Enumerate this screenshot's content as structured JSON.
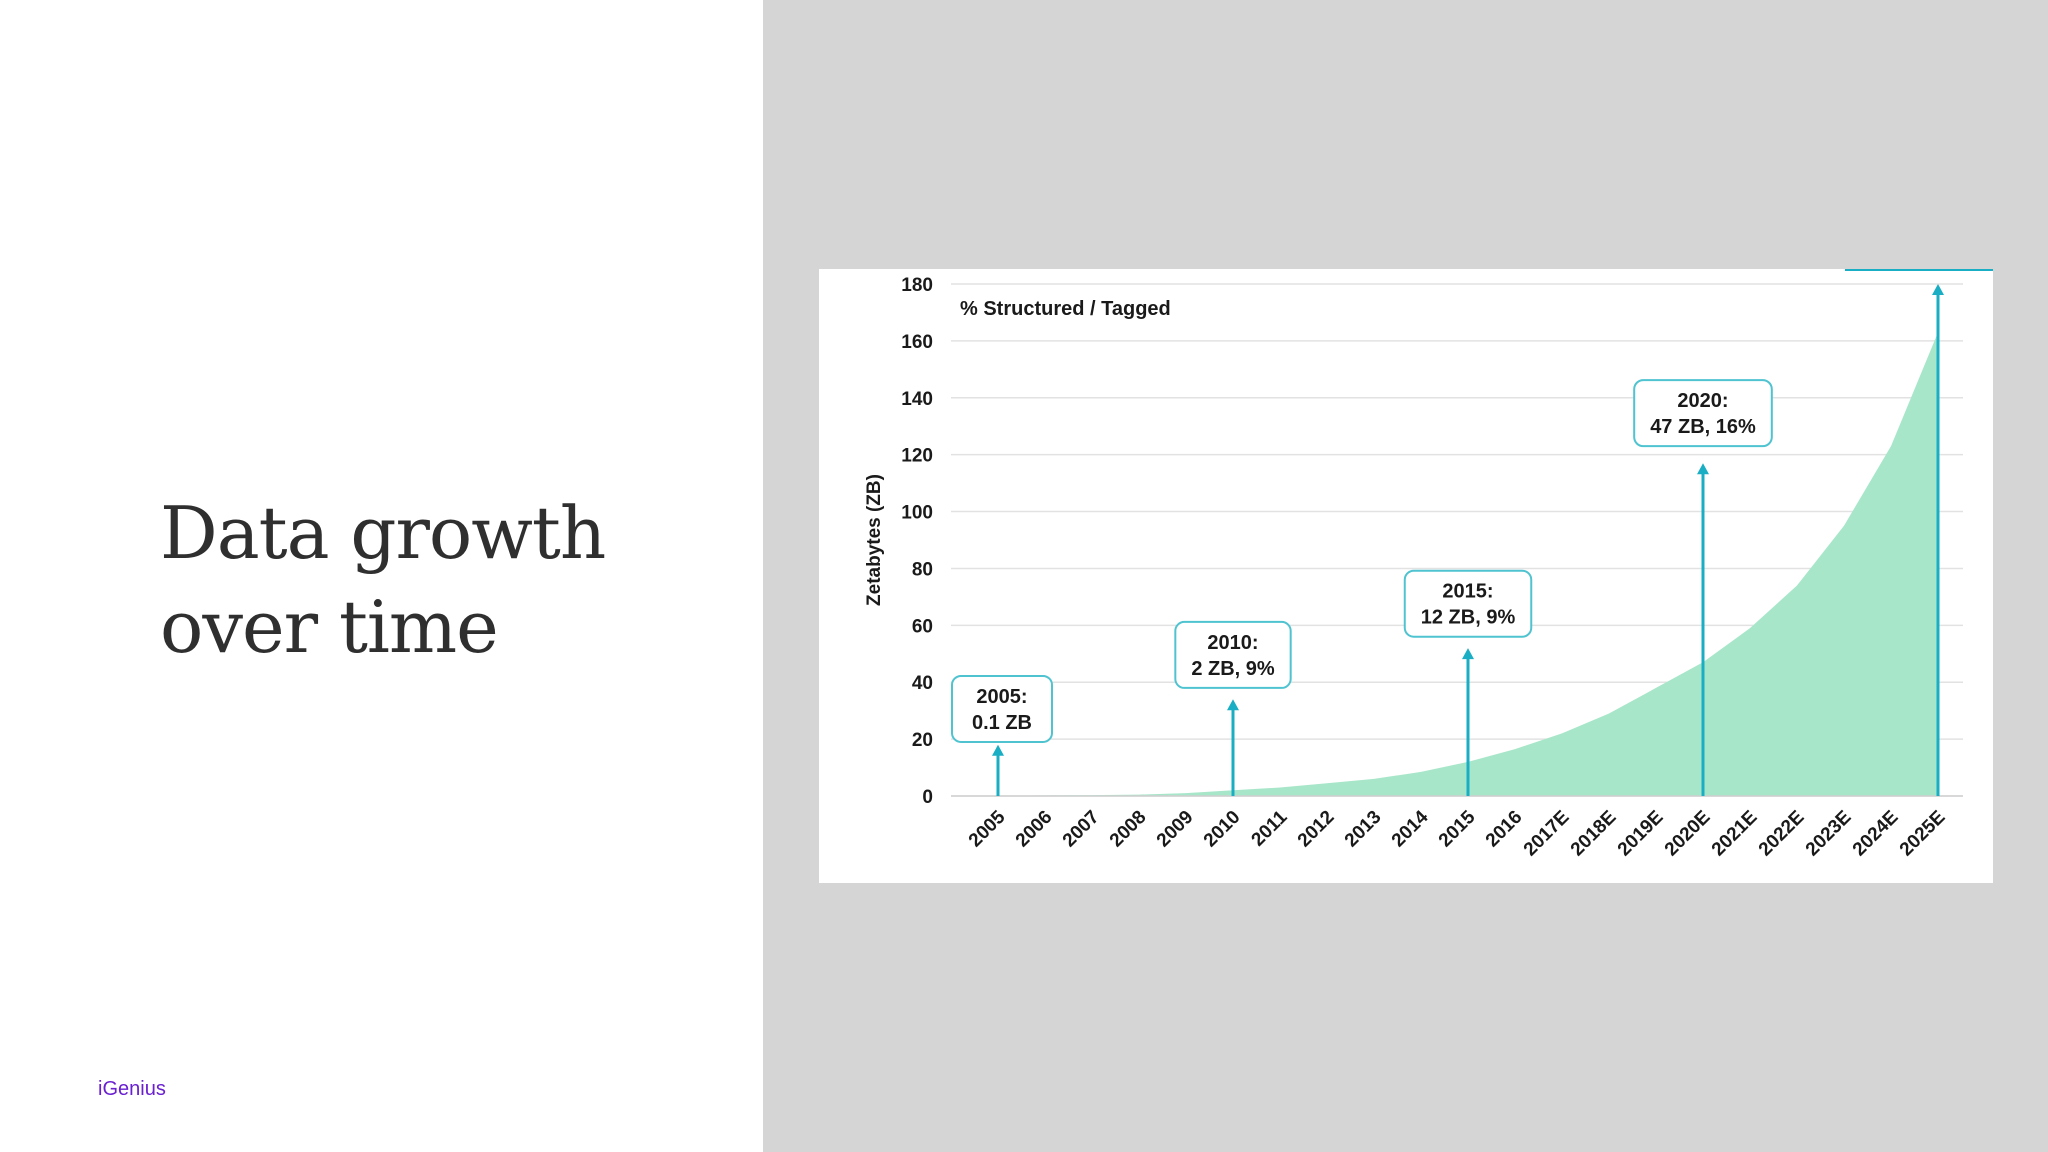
{
  "slide": {
    "title_line1": "Data growth",
    "title_line2": "over time",
    "brand": "iGenius"
  },
  "colors": {
    "area": "#a7e6c9",
    "arrow": "#1aaec4",
    "grid": "#e2e2e2",
    "callout_border": "#4fc3d0"
  },
  "chart_data": {
    "type": "area",
    "ylabel": "Zetabytes (ZB)",
    "xlabel": "",
    "ylim": [
      0,
      180
    ],
    "yticks": [
      0,
      20,
      40,
      60,
      80,
      100,
      120,
      140,
      160,
      180
    ],
    "legend": "% Structured / Tagged",
    "categories": [
      "2005",
      "2006",
      "2007",
      "2008",
      "2009",
      "2010",
      "2011",
      "2012",
      "2013",
      "2014",
      "2015",
      "2016",
      "2017E",
      "2018E",
      "2019E",
      "2020E",
      "2021E",
      "2022E",
      "2023E",
      "2024E",
      "2025E"
    ],
    "values": [
      0.1,
      0.2,
      0.3,
      0.5,
      1,
      2,
      3,
      4.5,
      6,
      8.5,
      12,
      16.5,
      22,
      29,
      38,
      47,
      59,
      74,
      95,
      123,
      163
    ],
    "callouts": [
      {
        "category": "2005",
        "line1": "2005:",
        "line2": "0.1 ZB",
        "arrow_top": 18,
        "box_bottom": 19
      },
      {
        "category": "2010",
        "line1": "2010:",
        "line2": "2 ZB, 9%",
        "arrow_top": 34,
        "box_bottom": 38
      },
      {
        "category": "2015",
        "line1": "2015:",
        "line2": "12 ZB, 9%",
        "arrow_top": 52,
        "box_bottom": 56
      },
      {
        "category": "2020E",
        "line1": "2020:",
        "line2": "47 ZB, 16%",
        "arrow_top": 117,
        "box_bottom": 123
      },
      {
        "category": "2025E",
        "line1": "",
        "line2": "",
        "arrow_top": 180,
        "box_bottom": null
      }
    ]
  }
}
